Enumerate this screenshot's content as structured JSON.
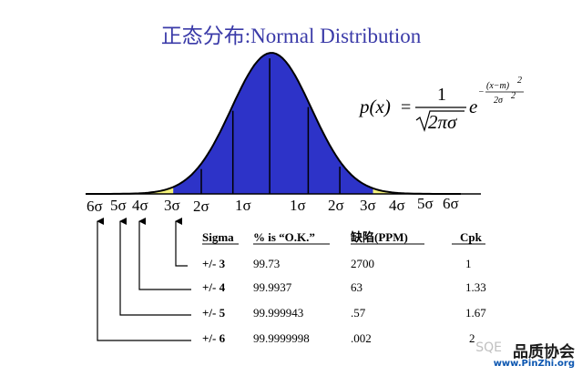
{
  "title": "正态分布:Normal Distribution",
  "formula": {
    "lhs": "p(x)",
    "equals": "=",
    "numerator": "1",
    "denominator": "2πσ",
    "base": "e",
    "exp_numerator": "(x−m)",
    "exp_denominator": "2σ",
    "exp_sign": "−",
    "square": "2"
  },
  "sigma_labels": {
    "left": [
      "6σ",
      "5σ",
      "4σ",
      "3σ",
      "2σ",
      "1σ"
    ],
    "right": [
      "1σ",
      "2σ",
      "3σ",
      "4σ",
      "5σ",
      "6σ"
    ]
  },
  "table": {
    "headers": [
      "Sigma",
      "% is “O.K.”",
      "缺陷(PPM)",
      "Cpk"
    ],
    "rows": [
      {
        "sigma": "+/- 3",
        "ok": "99.73",
        "ppm": "2700",
        "cpk": "1"
      },
      {
        "sigma": "+/- 4",
        "ok": "99.9937",
        "ppm": "63",
        "cpk": "1.33"
      },
      {
        "sigma": "+/- 5",
        "ok": "99.999943",
        "ppm": ".57",
        "cpk": "1.67"
      },
      {
        "sigma": "+/- 6",
        "ok": "99.9999998",
        "ppm": ".002",
        "cpk": "2"
      }
    ]
  },
  "watermark": {
    "source": "SQE",
    "brand": "品质协会",
    "url": "www.PinZhi.org"
  },
  "colors": {
    "core": "#2d33c8",
    "band4": "#f4f27a",
    "band5": "#1aa882",
    "band6": "#f0a060",
    "title": "#3a3aa8"
  }
}
